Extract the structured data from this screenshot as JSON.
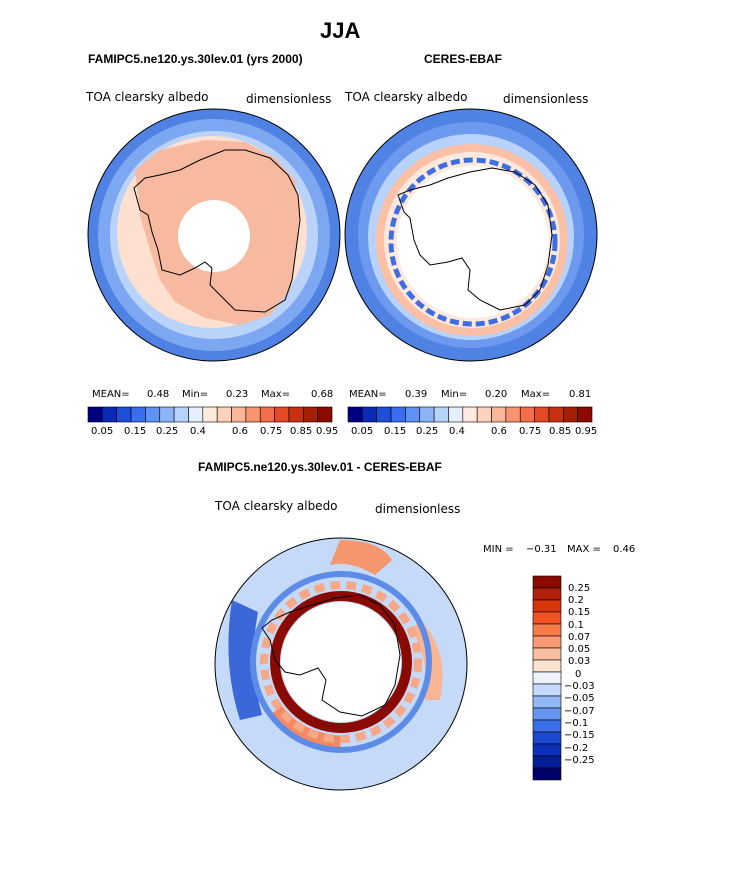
{
  "figure": {
    "title": "JJA",
    "colors": {
      "ocean_blue": "#4a7fe0",
      "land_peach": "#f6b599",
      "white": "#ffffff",
      "dark_red": "#8b0a00",
      "coast": "#000000"
    }
  },
  "panels": {
    "model": {
      "title": "FAMIPC5.ne120.ys.30lev.01 (yrs 2000)",
      "field": "TOA clearsky albedo",
      "units": "dimensionless",
      "stats": {
        "mean_label": "MEAN=",
        "mean": "0.48",
        "min_label": "Min=",
        "min": "0.23",
        "max_label": "Max=",
        "max": "0.68"
      }
    },
    "obs": {
      "title": "CERES-EBAF",
      "field": "TOA clearsky albedo",
      "units": "dimensionless",
      "stats": {
        "mean_label": "MEAN=",
        "mean": "0.39",
        "min_label": "Min=",
        "min": "0.20",
        "max_label": "Max=",
        "max": "0.81"
      }
    },
    "diff": {
      "title": "FAMIPC5.ne120.ys.30lev.01 - CERES-EBAF",
      "field": "TOA clearsky albedo",
      "units": "dimensionless",
      "stats": {
        "min_label": "MIN =",
        "min": "−0.31",
        "max_label": "MAX =",
        "max": "0.46"
      }
    }
  },
  "chart_data": [
    {
      "type": "heatmap",
      "projection": "south polar stereographic",
      "title": "FAMIPC5.ne120.ys.30lev.01 (yrs 2000)",
      "field": "TOA clearsky albedo",
      "units": "dimensionless",
      "mean": 0.48,
      "min": 0.23,
      "max": 0.68,
      "colorbar": {
        "levels": [
          0.05,
          0.1,
          0.15,
          0.2,
          0.25,
          0.3,
          0.35,
          0.4,
          0.45,
          0.5,
          0.55,
          0.6,
          0.65,
          0.7,
          0.75,
          0.8,
          0.85,
          0.9,
          0.95
        ],
        "tick_labels": [
          "0.05",
          "0.15",
          "0.25",
          "0.4",
          "0.6",
          "0.75",
          "0.85",
          "0.95"
        ],
        "colors": [
          "#00007f",
          "#0a2bb5",
          "#1e4fd9",
          "#3a6ef0",
          "#5f92f5",
          "#8bb4f8",
          "#b7d3fb",
          "#e3efff",
          "#ffe9dd",
          "#fdd2bc",
          "#fbb698",
          "#f89470",
          "#f46f49",
          "#e54a25",
          "#c8310f",
          "#a51e06",
          "#8b0a00"
        ]
      }
    },
    {
      "type": "heatmap",
      "projection": "south polar stereographic",
      "title": "CERES-EBAF",
      "field": "TOA clearsky albedo",
      "units": "dimensionless",
      "mean": 0.39,
      "min": 0.2,
      "max": 0.81,
      "colorbar": {
        "levels": [
          0.05,
          0.1,
          0.15,
          0.2,
          0.25,
          0.3,
          0.35,
          0.4,
          0.45,
          0.5,
          0.55,
          0.6,
          0.65,
          0.7,
          0.75,
          0.8,
          0.85,
          0.9,
          0.95
        ],
        "tick_labels": [
          "0.05",
          "0.15",
          "0.25",
          "0.4",
          "0.6",
          "0.75",
          "0.85",
          "0.95"
        ],
        "colors": [
          "#00007f",
          "#0a2bb5",
          "#1e4fd9",
          "#3a6ef0",
          "#5f92f5",
          "#8bb4f8",
          "#b7d3fb",
          "#e3efff",
          "#ffe9dd",
          "#fdd2bc",
          "#fbb698",
          "#f89470",
          "#f46f49",
          "#e54a25",
          "#c8310f",
          "#a51e06",
          "#8b0a00"
        ]
      }
    },
    {
      "type": "heatmap",
      "projection": "south polar stereographic",
      "title": "FAMIPC5.ne120.ys.30lev.01 - CERES-EBAF",
      "field": "TOA clearsky albedo",
      "units": "dimensionless",
      "min": -0.31,
      "max": 0.46,
      "colorbar": {
        "orientation": "vertical",
        "tick_labels": [
          "0.25",
          "0.2",
          "0.15",
          "0.1",
          "0.07",
          "0.05",
          "0.03",
          "0",
          "−0.03",
          "−0.05",
          "−0.07",
          "−0.1",
          "−0.15",
          "−0.2",
          "−0.25"
        ],
        "colors": [
          "#8b0a00",
          "#b3200a",
          "#d9350f",
          "#f05423",
          "#f77a4a",
          "#fa9a73",
          "#fcbea0",
          "#fee2d2",
          "#eef4ff",
          "#c4d9fb",
          "#93b8f6",
          "#6495f0",
          "#3a6ee6",
          "#1c49d2",
          "#0b2fb8",
          "#041d99",
          "#00006b"
        ]
      }
    }
  ]
}
